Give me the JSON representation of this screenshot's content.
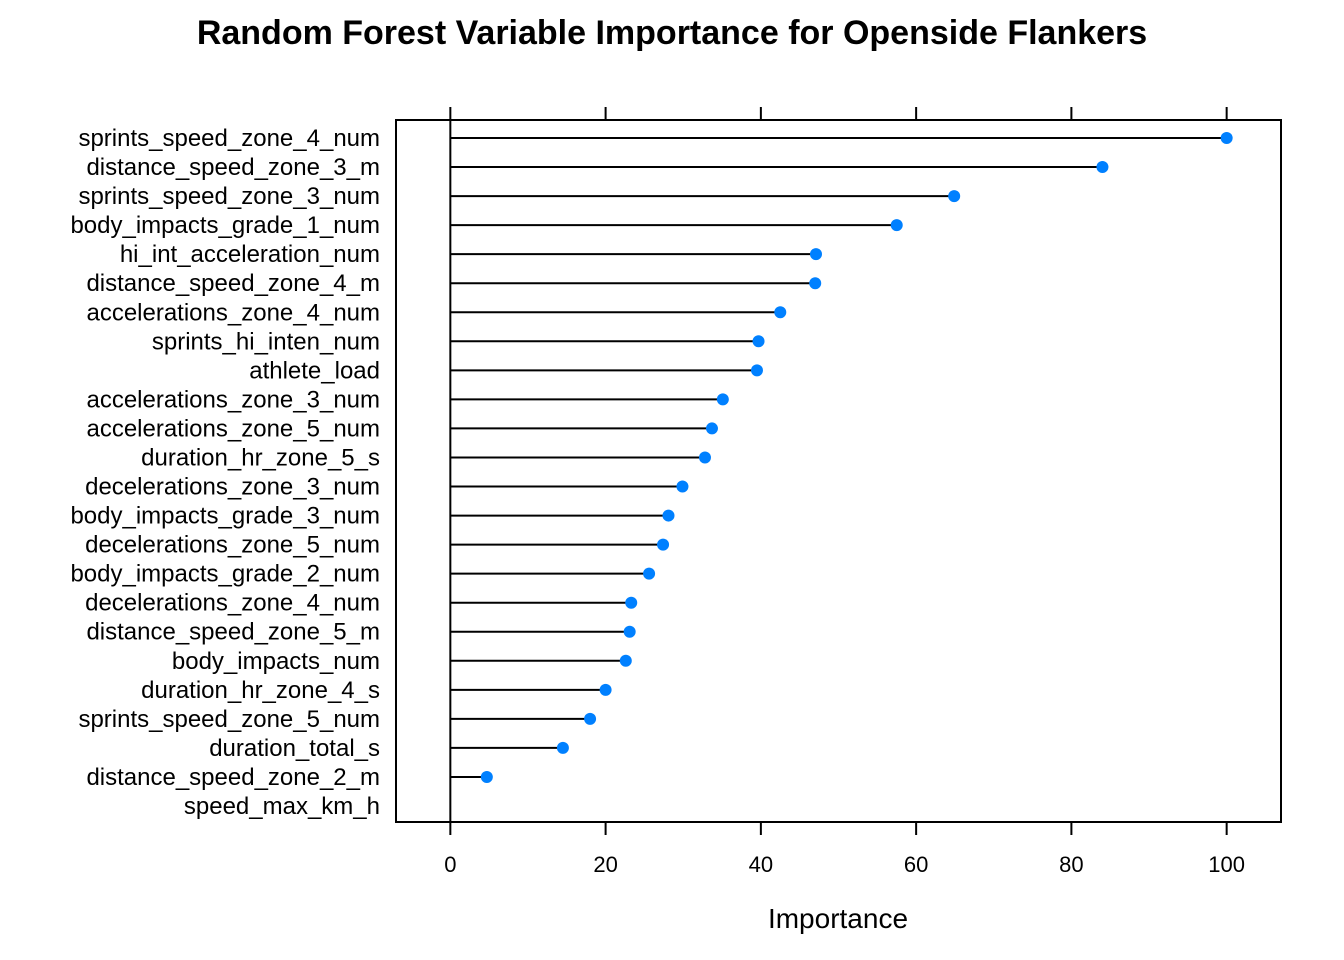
{
  "chart_data": {
    "type": "dot",
    "title": "Random Forest Variable Importance for Openside Flankers",
    "xlabel": "Importance",
    "xlim": [
      -7,
      107
    ],
    "xticks": [
      0,
      20,
      40,
      60,
      80,
      100
    ],
    "point_color": "#0080ff",
    "categories": [
      "sprints_speed_zone_4_num",
      "distance_speed_zone_3_m",
      "sprints_speed_zone_3_num",
      "body_impacts_grade_1_num",
      "hi_int_acceleration_num",
      "distance_speed_zone_4_m",
      "accelerations_zone_4_num",
      "sprints_hi_inten_num",
      "athlete_load",
      "accelerations_zone_3_num",
      "accelerations_zone_5_num",
      "duration_hr_zone_5_s",
      "decelerations_zone_3_num",
      "body_impacts_grade_3_num",
      "decelerations_zone_5_num",
      "body_impacts_grade_2_num",
      "decelerations_zone_4_num",
      "distance_speed_zone_5_m",
      "body_impacts_num",
      "duration_hr_zone_4_s",
      "sprints_speed_zone_5_num",
      "duration_total_s",
      "distance_speed_zone_2_m",
      "speed_max_km_h"
    ],
    "values": [
      100,
      84,
      64.9,
      57.5,
      47.1,
      47,
      42.5,
      39.7,
      39.5,
      35.1,
      33.7,
      32.8,
      29.9,
      28.1,
      27.4,
      25.6,
      23.3,
      23.1,
      22.6,
      20,
      18,
      14.5,
      4.7,
      0
    ]
  }
}
